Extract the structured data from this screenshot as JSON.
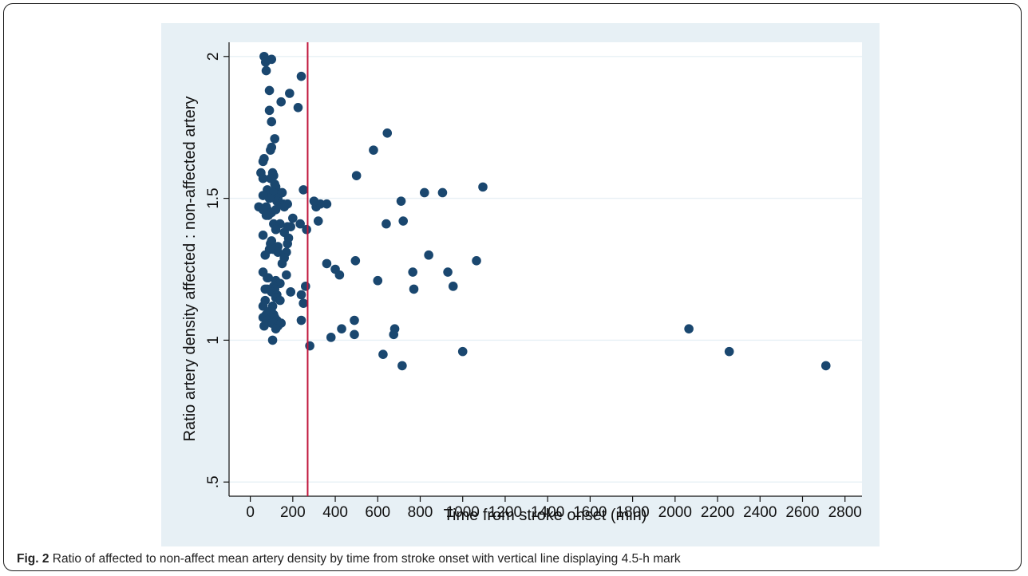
{
  "caption": {
    "label": "Fig. 2",
    "text": "Ratio of affected to non-affect mean artery density by time from stroke onset with vertical line displaying 4.5-h mark"
  },
  "colors": {
    "panel_background": "#e7f0f5",
    "plot_background": "#ffffff",
    "marker": "#1a476f",
    "reference_line": "#c0163c",
    "grid": "#e7f0f5"
  },
  "chart_data": {
    "type": "scatter",
    "title": "",
    "xlabel": "Time from stroke onset (min)",
    "ylabel": "Ratio artery density affected : non-affected artery",
    "xlim": [
      -100,
      2880
    ],
    "ylim": [
      0.45,
      2.05
    ],
    "xticks": [
      0,
      200,
      400,
      600,
      800,
      1000,
      1200,
      1400,
      1600,
      1800,
      2000,
      2200,
      2400,
      2600,
      2800
    ],
    "yticks": [
      0.5,
      1,
      1.5,
      2
    ],
    "ytick_labels": [
      ".5",
      "1",
      "1.5",
      "2"
    ],
    "grid": "horizontal",
    "reference_line": {
      "axis": "x",
      "value": 270
    },
    "series": [
      {
        "x": [
          65,
          75,
          100,
          72,
          240,
          90,
          185,
          145,
          90,
          225,
          100,
          115,
          95,
          100,
          65,
          60,
          105,
          50,
          110,
          95,
          60,
          115,
          120,
          80,
          95,
          110,
          150,
          130,
          250,
          125,
          140,
          90,
          60,
          155,
          75,
          175,
          40,
          60,
          80,
          100,
          120,
          160,
          85,
          75,
          110,
          200,
          140,
          120,
          175,
          235,
          190,
          160,
          120,
          265,
          60,
          100,
          180,
          175,
          95,
          130,
          90,
          110,
          70,
          170,
          130,
          160,
          150,
          360,
          400,
          420,
          60,
          80,
          85,
          120,
          140,
          110,
          170,
          260,
          190,
          115,
          80,
          100,
          70,
          125,
          240,
          120,
          140,
          190,
          60,
          70,
          105,
          85,
          75,
          100,
          110,
          250,
          60,
          80,
          115,
          100,
          125,
          105,
          130,
          240,
          145,
          65,
          120,
          280,
          380,
          430,
          490,
          490,
          105,
          310,
          330,
          360,
          300,
          320,
          500,
          580,
          645,
          710,
          820,
          905,
          1095,
          640,
          720,
          840,
          495,
          600,
          765,
          930,
          1065,
          770,
          955,
          680,
          675,
          625,
          715,
          1000,
          2065,
          2255,
          2710
        ],
        "y": [
          2.0,
          1.95,
          1.99,
          1.98,
          1.93,
          1.88,
          1.87,
          1.84,
          1.81,
          1.82,
          1.77,
          1.71,
          1.67,
          1.68,
          1.64,
          1.63,
          1.59,
          1.59,
          1.58,
          1.57,
          1.57,
          1.55,
          1.54,
          1.53,
          1.52,
          1.52,
          1.52,
          1.5,
          1.53,
          1.49,
          1.48,
          1.5,
          1.51,
          1.48,
          1.47,
          1.48,
          1.47,
          1.46,
          1.46,
          1.45,
          1.46,
          1.47,
          1.44,
          1.44,
          1.41,
          1.43,
          1.41,
          1.4,
          1.4,
          1.41,
          1.4,
          1.38,
          1.39,
          1.39,
          1.37,
          1.35,
          1.36,
          1.34,
          1.34,
          1.33,
          1.32,
          1.32,
          1.3,
          1.31,
          1.31,
          1.29,
          1.27,
          1.27,
          1.25,
          1.23,
          1.24,
          1.22,
          1.22,
          1.21,
          1.2,
          1.19,
          1.23,
          1.19,
          1.17,
          1.18,
          1.18,
          1.17,
          1.18,
          1.16,
          1.16,
          1.15,
          1.14,
          1.17,
          1.12,
          1.14,
          1.12,
          1.1,
          1.09,
          1.1,
          1.09,
          1.13,
          1.08,
          1.07,
          1.08,
          1.06,
          1.07,
          1.06,
          1.05,
          1.07,
          1.06,
          1.05,
          1.04,
          0.98,
          1.01,
          1.04,
          1.07,
          1.02,
          1.0,
          1.47,
          1.48,
          1.48,
          1.49,
          1.42,
          1.58,
          1.67,
          1.73,
          1.49,
          1.52,
          1.52,
          1.54,
          1.41,
          1.42,
          1.3,
          1.28,
          1.21,
          1.24,
          1.24,
          1.28,
          1.18,
          1.19,
          1.04,
          1.02,
          0.95,
          0.91,
          0.96,
          1.04,
          0.96,
          0.91
        ]
      }
    ]
  }
}
